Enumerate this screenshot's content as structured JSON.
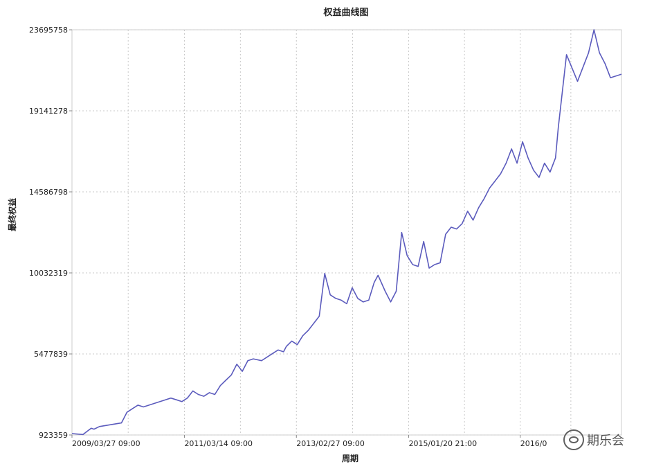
{
  "chart_data": {
    "type": "line",
    "title": "权益曲线图",
    "xlabel": "周期",
    "ylabel": "最终权益",
    "y_ticks": [
      923359,
      5477839,
      10032319,
      14586798,
      19141278,
      23695758
    ],
    "y_tick_labels": [
      "923359",
      "5477839",
      "10032319",
      "14586798",
      "19141278",
      "23695758"
    ],
    "ylim": [
      923359,
      23695758
    ],
    "xlim": [
      0,
      1
    ],
    "x_ticks": [
      0.0,
      0.2046,
      0.4084,
      0.6128,
      0.8158
    ],
    "x_tick_labels": [
      "2009/03/27 09:00",
      "2011/03/14 09:00",
      "2013/02/27 09:00",
      "2015/01/20 21:00",
      "2016/0"
    ],
    "grid": true,
    "line_color": "#5b5bbd",
    "series": [
      {
        "x": [
          0.0,
          0.02,
          0.035,
          0.04,
          0.05,
          0.07,
          0.09,
          0.1,
          0.11,
          0.12,
          0.13,
          0.15,
          0.17,
          0.18,
          0.19,
          0.2,
          0.21,
          0.22,
          0.23,
          0.24,
          0.25,
          0.26,
          0.27,
          0.28,
          0.29,
          0.3,
          0.31,
          0.32,
          0.33,
          0.345,
          0.355,
          0.365,
          0.375,
          0.385,
          0.39,
          0.4,
          0.41,
          0.42,
          0.43,
          0.44,
          0.45,
          0.46,
          0.47,
          0.48,
          0.49,
          0.5,
          0.51,
          0.52,
          0.53,
          0.54,
          0.55,
          0.557,
          0.57,
          0.58,
          0.59,
          0.6,
          0.61,
          0.62,
          0.63,
          0.64,
          0.65,
          0.66,
          0.67,
          0.68,
          0.69,
          0.7,
          0.71,
          0.72,
          0.73,
          0.74,
          0.75,
          0.76,
          0.77,
          0.78,
          0.79,
          0.8,
          0.81,
          0.82,
          0.83,
          0.84,
          0.85,
          0.86,
          0.87,
          0.88,
          0.885,
          0.9,
          0.92,
          0.94,
          0.95,
          0.96,
          0.97,
          0.98,
          1.0
        ],
        "y": [
          1000000,
          950000,
          1300000,
          1250000,
          1400000,
          1500000,
          1600000,
          2200000,
          2400000,
          2600000,
          2500000,
          2700000,
          2900000,
          3000000,
          2900000,
          2800000,
          3000000,
          3400000,
          3200000,
          3100000,
          3300000,
          3200000,
          3700000,
          4000000,
          4300000,
          4900000,
          4500000,
          5100000,
          5200000,
          5100000,
          5300000,
          5500000,
          5700000,
          5600000,
          5900000,
          6200000,
          6000000,
          6500000,
          6800000,
          7200000,
          7600000,
          10000000,
          8800000,
          8600000,
          8500000,
          8300000,
          9200000,
          8600000,
          8400000,
          8500000,
          9500000,
          9900000,
          9000000,
          8400000,
          9000000,
          12300000,
          11000000,
          10500000,
          10400000,
          11800000,
          10300000,
          10500000,
          10600000,
          12200000,
          12600000,
          12500000,
          12800000,
          13500000,
          13000000,
          13700000,
          14200000,
          14800000,
          15200000,
          15600000,
          16200000,
          17000000,
          16200000,
          17400000,
          16500000,
          15800000,
          15400000,
          16200000,
          15700000,
          16500000,
          18200000,
          22300000,
          20800000,
          22400000,
          23695758,
          22400000,
          21800000,
          21000000,
          21200000
        ]
      }
    ]
  },
  "watermark": {
    "text": "期乐会",
    "icon": "wechat-icon"
  }
}
